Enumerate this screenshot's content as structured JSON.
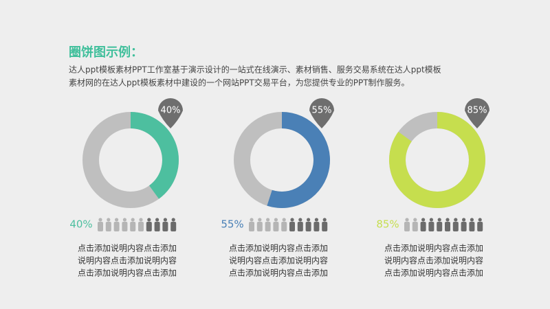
{
  "title": "圈饼图示例：",
  "description": [
    "达人ppt模板素材PPT工作室基于演示设计的一站式在线演示、素材销售、服务交易系统在达人ppt模板",
    "素材网的在达人ppt模板素材中建设的一个网站PPT交易平台，为您提供专业的PPT制作服务。"
  ],
  "chart_data": [
    {
      "type": "donut",
      "values": [
        40
      ],
      "value_labels": [
        "40%"
      ],
      "color": "#4dbf9f",
      "note": [
        "点击添加说明内容点击添加",
        "说明内容点击添加说明内容",
        "点击添加说明内容点击添加"
      ]
    },
    {
      "type": "donut",
      "values": [
        55
      ],
      "value_labels": [
        "55%"
      ],
      "color": "#4a80b6",
      "note": [
        "点击添加说明内容点击添加",
        "说明内容点击添加说明内容",
        "点击添加说明内容点击添加"
      ]
    },
    {
      "type": "donut",
      "values": [
        85
      ],
      "value_labels": [
        "85%"
      ],
      "color": "#c6de4e",
      "note": [
        "点击添加说明内容点击添加",
        "说明内容点击添加说明内容",
        "点击添加说明内容点击添加"
      ]
    }
  ]
}
